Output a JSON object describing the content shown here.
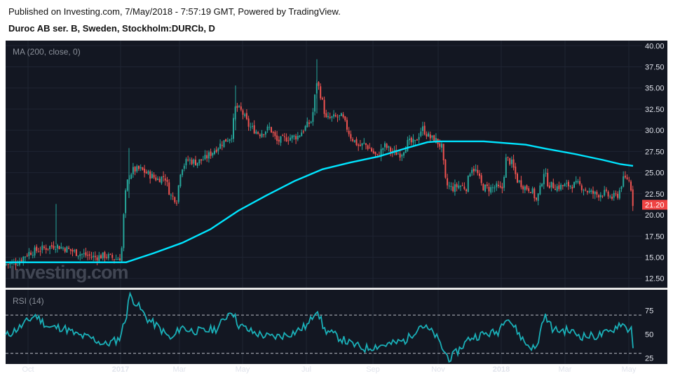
{
  "header": {
    "published": "Published on Investing.com, 7/May/2018 - 7:57:19 GMT, Powered by TradingView.",
    "instrument": "Duroc AB ser. B, Sweden, Stockholm:DURCb, D"
  },
  "colors": {
    "background": "#131722",
    "up": "#26a69a",
    "down": "#ef5350",
    "ma": "#00e5ff",
    "rsi": "#1ab0b8",
    "price_tag": "#ef4444"
  },
  "chart_data": [
    {
      "type": "candlestick",
      "title": "MA (200, close, 0)",
      "watermark": "Investing.com",
      "x_tick_labels": [
        "Oct",
        "2017",
        "Mar",
        "May",
        "Jul",
        "Sep",
        "Nov",
        "2018",
        "Mar",
        "May"
      ],
      "y_tick_labels": [
        "40.00",
        "37.50",
        "35.00",
        "32.50",
        "30.00",
        "27.50",
        "25.00",
        "22.50",
        "20.00",
        "17.50",
        "15.00",
        "12.50"
      ],
      "ylim": [
        11.4,
        40.6
      ],
      "last_price_label": "21.20",
      "price_path": [
        [
          0,
          14.1
        ],
        [
          25,
          14.4
        ],
        [
          40,
          15.5
        ],
        [
          60,
          16.0
        ],
        [
          78,
          16.4
        ],
        [
          95,
          16.0
        ],
        [
          110,
          15.5
        ],
        [
          135,
          15.0
        ],
        [
          150,
          15.2
        ],
        [
          165,
          14.8
        ],
        [
          173,
          15.0
        ],
        [
          175,
          18.0
        ],
        [
          178,
          22.0
        ],
        [
          183,
          24.5
        ],
        [
          190,
          25.3
        ],
        [
          200,
          25.4
        ],
        [
          212,
          24.8
        ],
        [
          225,
          24.2
        ],
        [
          235,
          24.6
        ],
        [
          243,
          22.3
        ],
        [
          252,
          21.8
        ],
        [
          258,
          25.5
        ],
        [
          268,
          26.5
        ],
        [
          280,
          26.2
        ],
        [
          293,
          26.7
        ],
        [
          305,
          27.6
        ],
        [
          318,
          28.6
        ],
        [
          330,
          29.3
        ],
        [
          336,
          32.8
        ],
        [
          345,
          32.2
        ],
        [
          355,
          30.5
        ],
        [
          370,
          29.6
        ],
        [
          385,
          30.3
        ],
        [
          395,
          28.7
        ],
        [
          410,
          29.1
        ],
        [
          425,
          29.3
        ],
        [
          435,
          30.3
        ],
        [
          445,
          31.2
        ],
        [
          452,
          35.9
        ],
        [
          460,
          33.3
        ],
        [
          465,
          31.3
        ],
        [
          475,
          31.5
        ],
        [
          488,
          31.6
        ],
        [
          500,
          29.3
        ],
        [
          512,
          28.1
        ],
        [
          520,
          28.4
        ],
        [
          528,
          27.8
        ],
        [
          538,
          26.8
        ],
        [
          548,
          28.2
        ],
        [
          560,
          27.4
        ],
        [
          572,
          27.2
        ],
        [
          582,
          28.6
        ],
        [
          592,
          28.5
        ],
        [
          602,
          30.3
        ],
        [
          612,
          29.2
        ],
        [
          622,
          28.8
        ],
        [
          630,
          28.0
        ],
        [
          636,
          23.6
        ],
        [
          645,
          23.1
        ],
        [
          655,
          23.5
        ],
        [
          665,
          23.2
        ],
        [
          672,
          25.7
        ],
        [
          680,
          25.1
        ],
        [
          688,
          23.3
        ],
        [
          698,
          23.1
        ],
        [
          708,
          23.3
        ],
        [
          716,
          22.9
        ],
        [
          722,
          26.7
        ],
        [
          730,
          26.1
        ],
        [
          738,
          24.1
        ],
        [
          748,
          23.3
        ],
        [
          758,
          23.0
        ],
        [
          765,
          21.7
        ],
        [
          770,
          22.9
        ],
        [
          776,
          25.2
        ],
        [
          782,
          23.6
        ],
        [
          795,
          23.3
        ],
        [
          810,
          23.5
        ],
        [
          825,
          23.6
        ],
        [
          840,
          22.7
        ],
        [
          852,
          22.4
        ],
        [
          862,
          22.6
        ],
        [
          872,
          22.0
        ],
        [
          882,
          22.4
        ],
        [
          888,
          24.1
        ],
        [
          896,
          24.4
        ],
        [
          900,
          23.2
        ],
        [
          903,
          21.2
        ]
      ],
      "ma_200": [
        [
          8,
          14.4
        ],
        [
          180,
          14.4
        ],
        [
          220,
          15.5
        ],
        [
          260,
          16.7
        ],
        [
          300,
          18.3
        ],
        [
          340,
          20.5
        ],
        [
          380,
          22.3
        ],
        [
          420,
          24.0
        ],
        [
          460,
          25.4
        ],
        [
          500,
          26.2
        ],
        [
          540,
          26.9
        ],
        [
          580,
          27.9
        ],
        [
          610,
          28.6
        ],
        [
          625,
          28.7
        ],
        [
          660,
          28.7
        ],
        [
          690,
          28.7
        ],
        [
          720,
          28.5
        ],
        [
          750,
          28.3
        ],
        [
          780,
          27.8
        ],
        [
          820,
          27.2
        ],
        [
          860,
          26.5
        ],
        [
          885,
          26.0
        ],
        [
          903,
          25.8
        ]
      ]
    },
    {
      "type": "line",
      "title": "RSI (14)",
      "y_tick_labels": [
        "75",
        "50",
        "25"
      ],
      "reference_lines": [
        70,
        30
      ],
      "ylim": [
        18.8,
        96.5
      ],
      "x_tick_labels": [
        "Oct",
        "2017",
        "Mar",
        "May",
        "Jul",
        "Sep",
        "Nov",
        "2018",
        "Mar",
        "May"
      ],
      "path": [
        [
          8,
          48
        ],
        [
          30,
          58
        ],
        [
          50,
          70
        ],
        [
          70,
          57
        ],
        [
          90,
          57
        ],
        [
          110,
          49
        ],
        [
          130,
          46
        ],
        [
          150,
          39
        ],
        [
          170,
          45
        ],
        [
          180,
          68
        ],
        [
          184,
          91
        ],
        [
          195,
          82
        ],
        [
          210,
          66
        ],
        [
          225,
          58
        ],
        [
          245,
          44
        ],
        [
          258,
          58
        ],
        [
          270,
          54
        ],
        [
          290,
          53
        ],
        [
          310,
          56
        ],
        [
          330,
          76
        ],
        [
          340,
          60
        ],
        [
          360,
          52
        ],
        [
          385,
          47
        ],
        [
          400,
          48
        ],
        [
          420,
          52
        ],
        [
          440,
          60
        ],
        [
          452,
          78
        ],
        [
          462,
          55
        ],
        [
          480,
          48
        ],
        [
          500,
          40
        ],
        [
          520,
          35
        ],
        [
          540,
          38
        ],
        [
          560,
          40
        ],
        [
          580,
          44
        ],
        [
          600,
          60
        ],
        [
          620,
          50
        ],
        [
          635,
          30
        ],
        [
          642,
          24
        ],
        [
          655,
          34
        ],
        [
          670,
          46
        ],
        [
          690,
          50
        ],
        [
          710,
          52
        ],
        [
          722,
          70
        ],
        [
          735,
          56
        ],
        [
          750,
          40
        ],
        [
          765,
          34
        ],
        [
          776,
          70
        ],
        [
          790,
          54
        ],
        [
          810,
          54
        ],
        [
          830,
          48
        ],
        [
          850,
          48
        ],
        [
          870,
          52
        ],
        [
          885,
          62
        ],
        [
          898,
          54
        ],
        [
          901,
          60
        ],
        [
          903,
          38
        ]
      ]
    }
  ]
}
